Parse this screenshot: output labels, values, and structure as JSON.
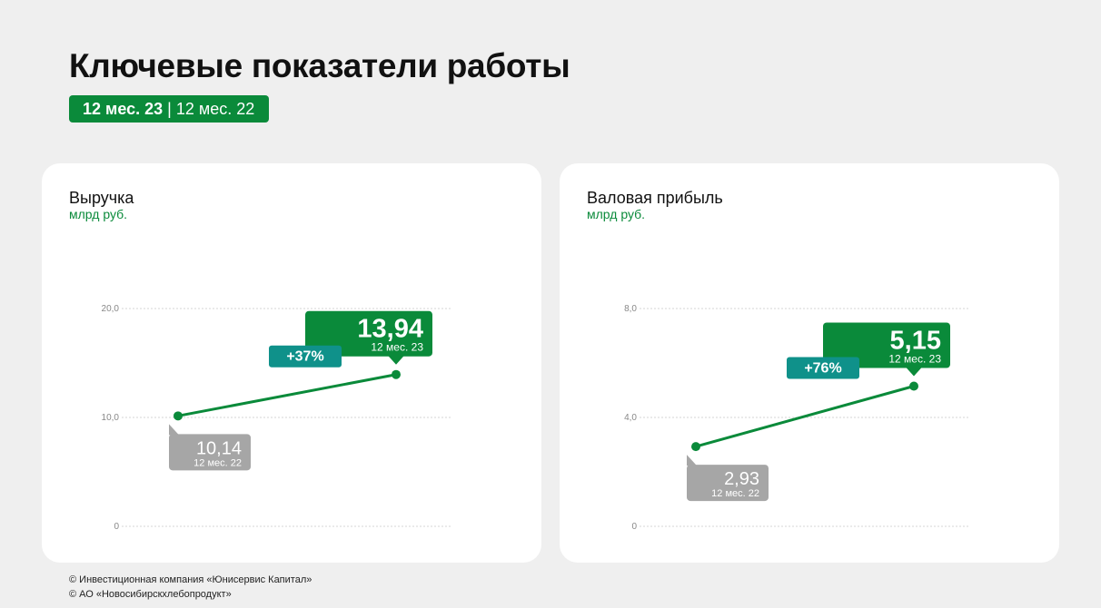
{
  "header": {
    "title": "Ключевые показатели работы",
    "period_current": "12 мес. 23",
    "period_separator": "|",
    "period_previous": "12 мес. 22"
  },
  "colors": {
    "green": "#0a8a3a",
    "teal": "#0f918a",
    "gray": "#a6a6a6",
    "unit_green": "#0a8a3a"
  },
  "chart_data": [
    {
      "type": "line",
      "title": "Выручка",
      "subtitle": "млрд руб.",
      "x": [
        "12 мес. 22",
        "12 мес. 23"
      ],
      "series": [
        {
          "values": [
            10.14,
            13.94
          ]
        }
      ],
      "ylim": [
        0,
        20
      ],
      "yticks": [
        0,
        10,
        20
      ],
      "ytick_labels": [
        "0",
        "10,0",
        "20,0"
      ],
      "grid": true,
      "labels": {
        "prev_value": "10,14",
        "prev_period": "12 мес. 22",
        "curr_value": "13,94",
        "curr_period": "12 мес. 23",
        "change": "+37%"
      }
    },
    {
      "type": "line",
      "title": "Валовая прибыль",
      "subtitle": "млрд руб.",
      "x": [
        "12 мес. 22",
        "12 мес. 23"
      ],
      "series": [
        {
          "values": [
            2.93,
            5.15
          ]
        }
      ],
      "ylim": [
        0,
        8
      ],
      "yticks": [
        0,
        4,
        8
      ],
      "ytick_labels": [
        "0",
        "4,0",
        "8,0"
      ],
      "grid": true,
      "labels": {
        "prev_value": "2,93",
        "prev_period": "12 мес. 22",
        "curr_value": "5,15",
        "curr_period": "12 мес. 23",
        "change": "+76%"
      }
    }
  ],
  "footer": {
    "line1": "© Инвестиционная компания «Юнисервис Капитал»",
    "line2": "© АО «Новосибирскхлебопродукт»"
  }
}
